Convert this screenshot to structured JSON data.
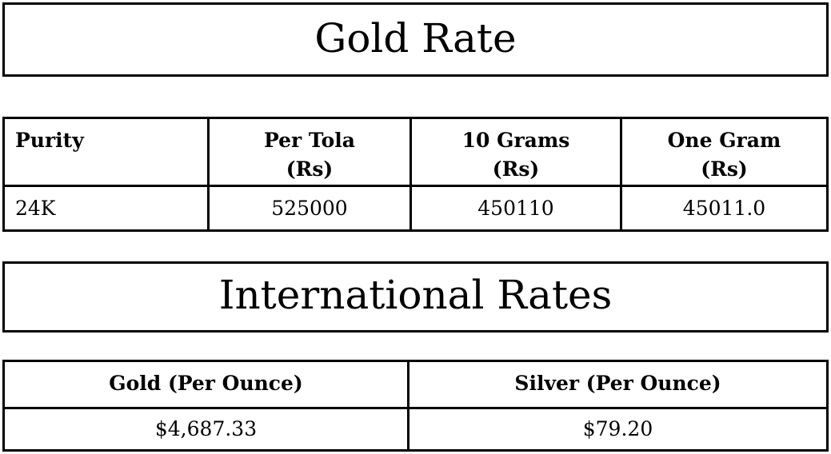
{
  "colors": {
    "background": "#ffffff",
    "border": "#000000",
    "text": "#000000"
  },
  "gold_section": {
    "title": "Gold Rate",
    "table": {
      "headers": [
        "Purity",
        "Per Tola\n(Rs)",
        "10 Grams\n(Rs)",
        "One Gram\n(Rs)"
      ],
      "rows": [
        [
          "24K",
          "525000",
          "450110",
          "45011.0"
        ]
      ]
    }
  },
  "international_section": {
    "title": "International Rates",
    "table": {
      "headers": [
        "Gold (Per Ounce)",
        "Silver (Per Ounce)"
      ],
      "rows": [
        [
          "$4,687.33",
          "$79.20"
        ]
      ]
    }
  }
}
